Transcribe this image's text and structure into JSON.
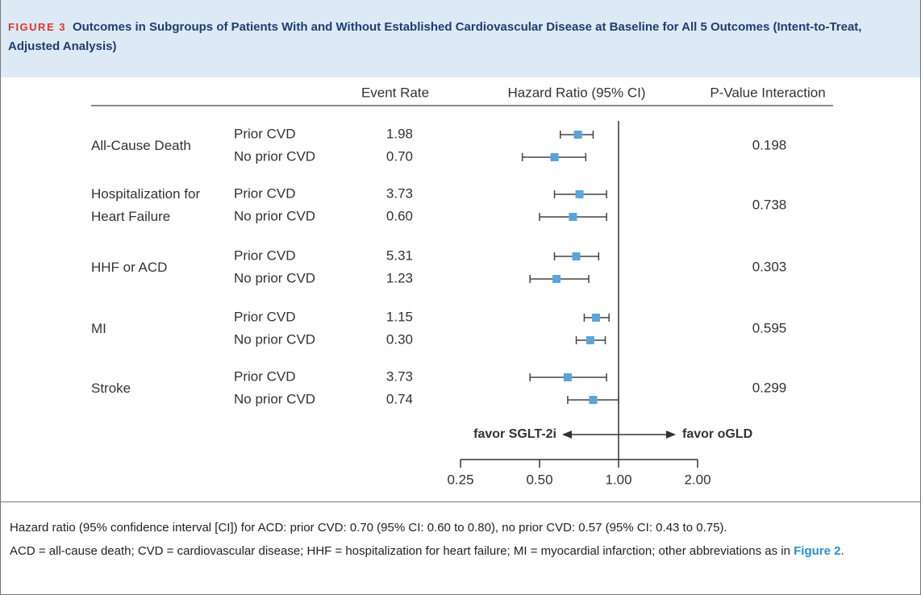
{
  "chart_data": {
    "type": "forest",
    "figure_label": "FIGURE 3",
    "title": "Outcomes in Subgroups of Patients With and Without Established Cardiovascular Disease at Baseline for All 5 Outcomes (Intent-to-Treat, Adjusted Analysis)",
    "column_headers": [
      "Event Rate",
      "Hazard Ratio (95% CI)",
      "P-Value Interaction"
    ],
    "outcomes": [
      {
        "name": "All-Cause Death",
        "p_interaction": 0.198,
        "rows": [
          {
            "subgroup": "Prior CVD",
            "event_rate": "1.98",
            "hr": 0.7,
            "lower": 0.6,
            "upper": 0.8
          },
          {
            "subgroup": "No prior CVD",
            "event_rate": "0.70",
            "hr": 0.57,
            "lower": 0.43,
            "upper": 0.75
          }
        ]
      },
      {
        "name": "Hospitalization for Heart Failure",
        "p_interaction": 0.738,
        "rows": [
          {
            "subgroup": "Prior CVD",
            "event_rate": "3.73",
            "hr": 0.71,
            "lower": 0.57,
            "upper": 0.9
          },
          {
            "subgroup": "No prior CVD",
            "event_rate": "0.60",
            "hr": 0.67,
            "lower": 0.5,
            "upper": 0.9
          }
        ]
      },
      {
        "name": "HHF or ACD",
        "p_interaction": 0.303,
        "rows": [
          {
            "subgroup": "Prior CVD",
            "event_rate": "5.31",
            "hr": 0.69,
            "lower": 0.57,
            "upper": 0.84
          },
          {
            "subgroup": "No prior CVD",
            "event_rate": "1.23",
            "hr": 0.58,
            "lower": 0.46,
            "upper": 0.77
          }
        ]
      },
      {
        "name": "MI",
        "p_interaction": 0.595,
        "rows": [
          {
            "subgroup": "Prior CVD",
            "event_rate": "1.15",
            "hr": 0.82,
            "lower": 0.74,
            "upper": 0.92
          },
          {
            "subgroup": "No prior CVD",
            "event_rate": "0.30",
            "hr": 0.78,
            "lower": 0.69,
            "upper": 0.89
          }
        ]
      },
      {
        "name": "Stroke",
        "p_interaction": 0.299,
        "rows": [
          {
            "subgroup": "Prior CVD",
            "event_rate": "3.73",
            "hr": 0.64,
            "lower": 0.46,
            "upper": 0.9
          },
          {
            "subgroup": "No prior CVD",
            "event_rate": "0.74",
            "hr": 0.8,
            "lower": 0.64,
            "upper": 1.0
          }
        ]
      }
    ],
    "xlim": [
      0.25,
      2
    ],
    "xticks": [
      0.25,
      {
        "value": 0.5,
        "label": "0.50"
      },
      {
        "value": 1,
        "label": "1.00"
      },
      {
        "value": 2,
        "label": "2.00"
      }
    ],
    "log_scale": true,
    "reference_line": 1,
    "marker_color": "#5ba4d9",
    "direction_labels": [
      "favor SGLT-2i",
      "favor oGLD"
    ]
  },
  "caption": {
    "sentence1": "Hazard ratio (95% confidence interval [CI]) for ACD: prior CVD: 0.70 (95% CI: 0.60 to 0.80), no prior CVD: 0.57 (95% CI: 0.43 to 0.75).",
    "sentence2": "ACD = all-cause death; CVD = cardiovascular disease; HHF = hospitalization for heart failure; MI = myocardial infarction; other abbreviations as in ",
    "link": "Figure 2",
    "end": "."
  }
}
